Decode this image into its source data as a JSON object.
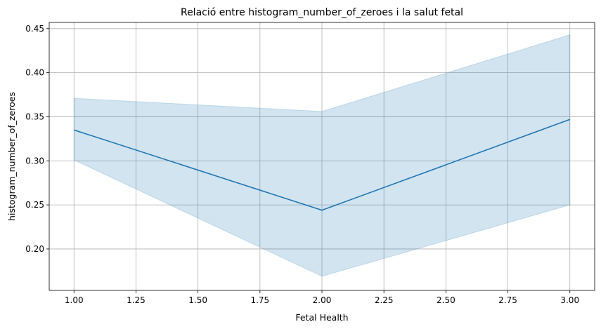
{
  "chart_data": {
    "type": "line",
    "title": "Relació entre histogram_number_of_zeroes i la salut fetal",
    "xlabel": "Fetal Health",
    "ylabel": "histogram_number_of_zeroes",
    "xlim": [
      0.9,
      3.1
    ],
    "ylim": [
      0.153,
      0.457
    ],
    "grid": true,
    "x_ticks": [
      "1.00",
      "1.25",
      "1.50",
      "1.75",
      "2.00",
      "2.25",
      "2.50",
      "2.75",
      "3.00"
    ],
    "y_ticks": [
      "0.20",
      "0.25",
      "0.30",
      "0.35",
      "0.40",
      "0.45"
    ],
    "x": [
      1,
      2,
      3
    ],
    "series": [
      {
        "values": [
          0.335,
          0.244,
          0.347
        ],
        "ci_lower": [
          0.301,
          0.169,
          0.25
        ],
        "ci_upper": [
          0.371,
          0.356,
          0.443
        ],
        "color": "#1f77b4"
      }
    ],
    "colors": {
      "line": "#1f77b4",
      "band": "#1f77b4",
      "grid": "#b0b0b0",
      "axes": "#000000"
    }
  }
}
